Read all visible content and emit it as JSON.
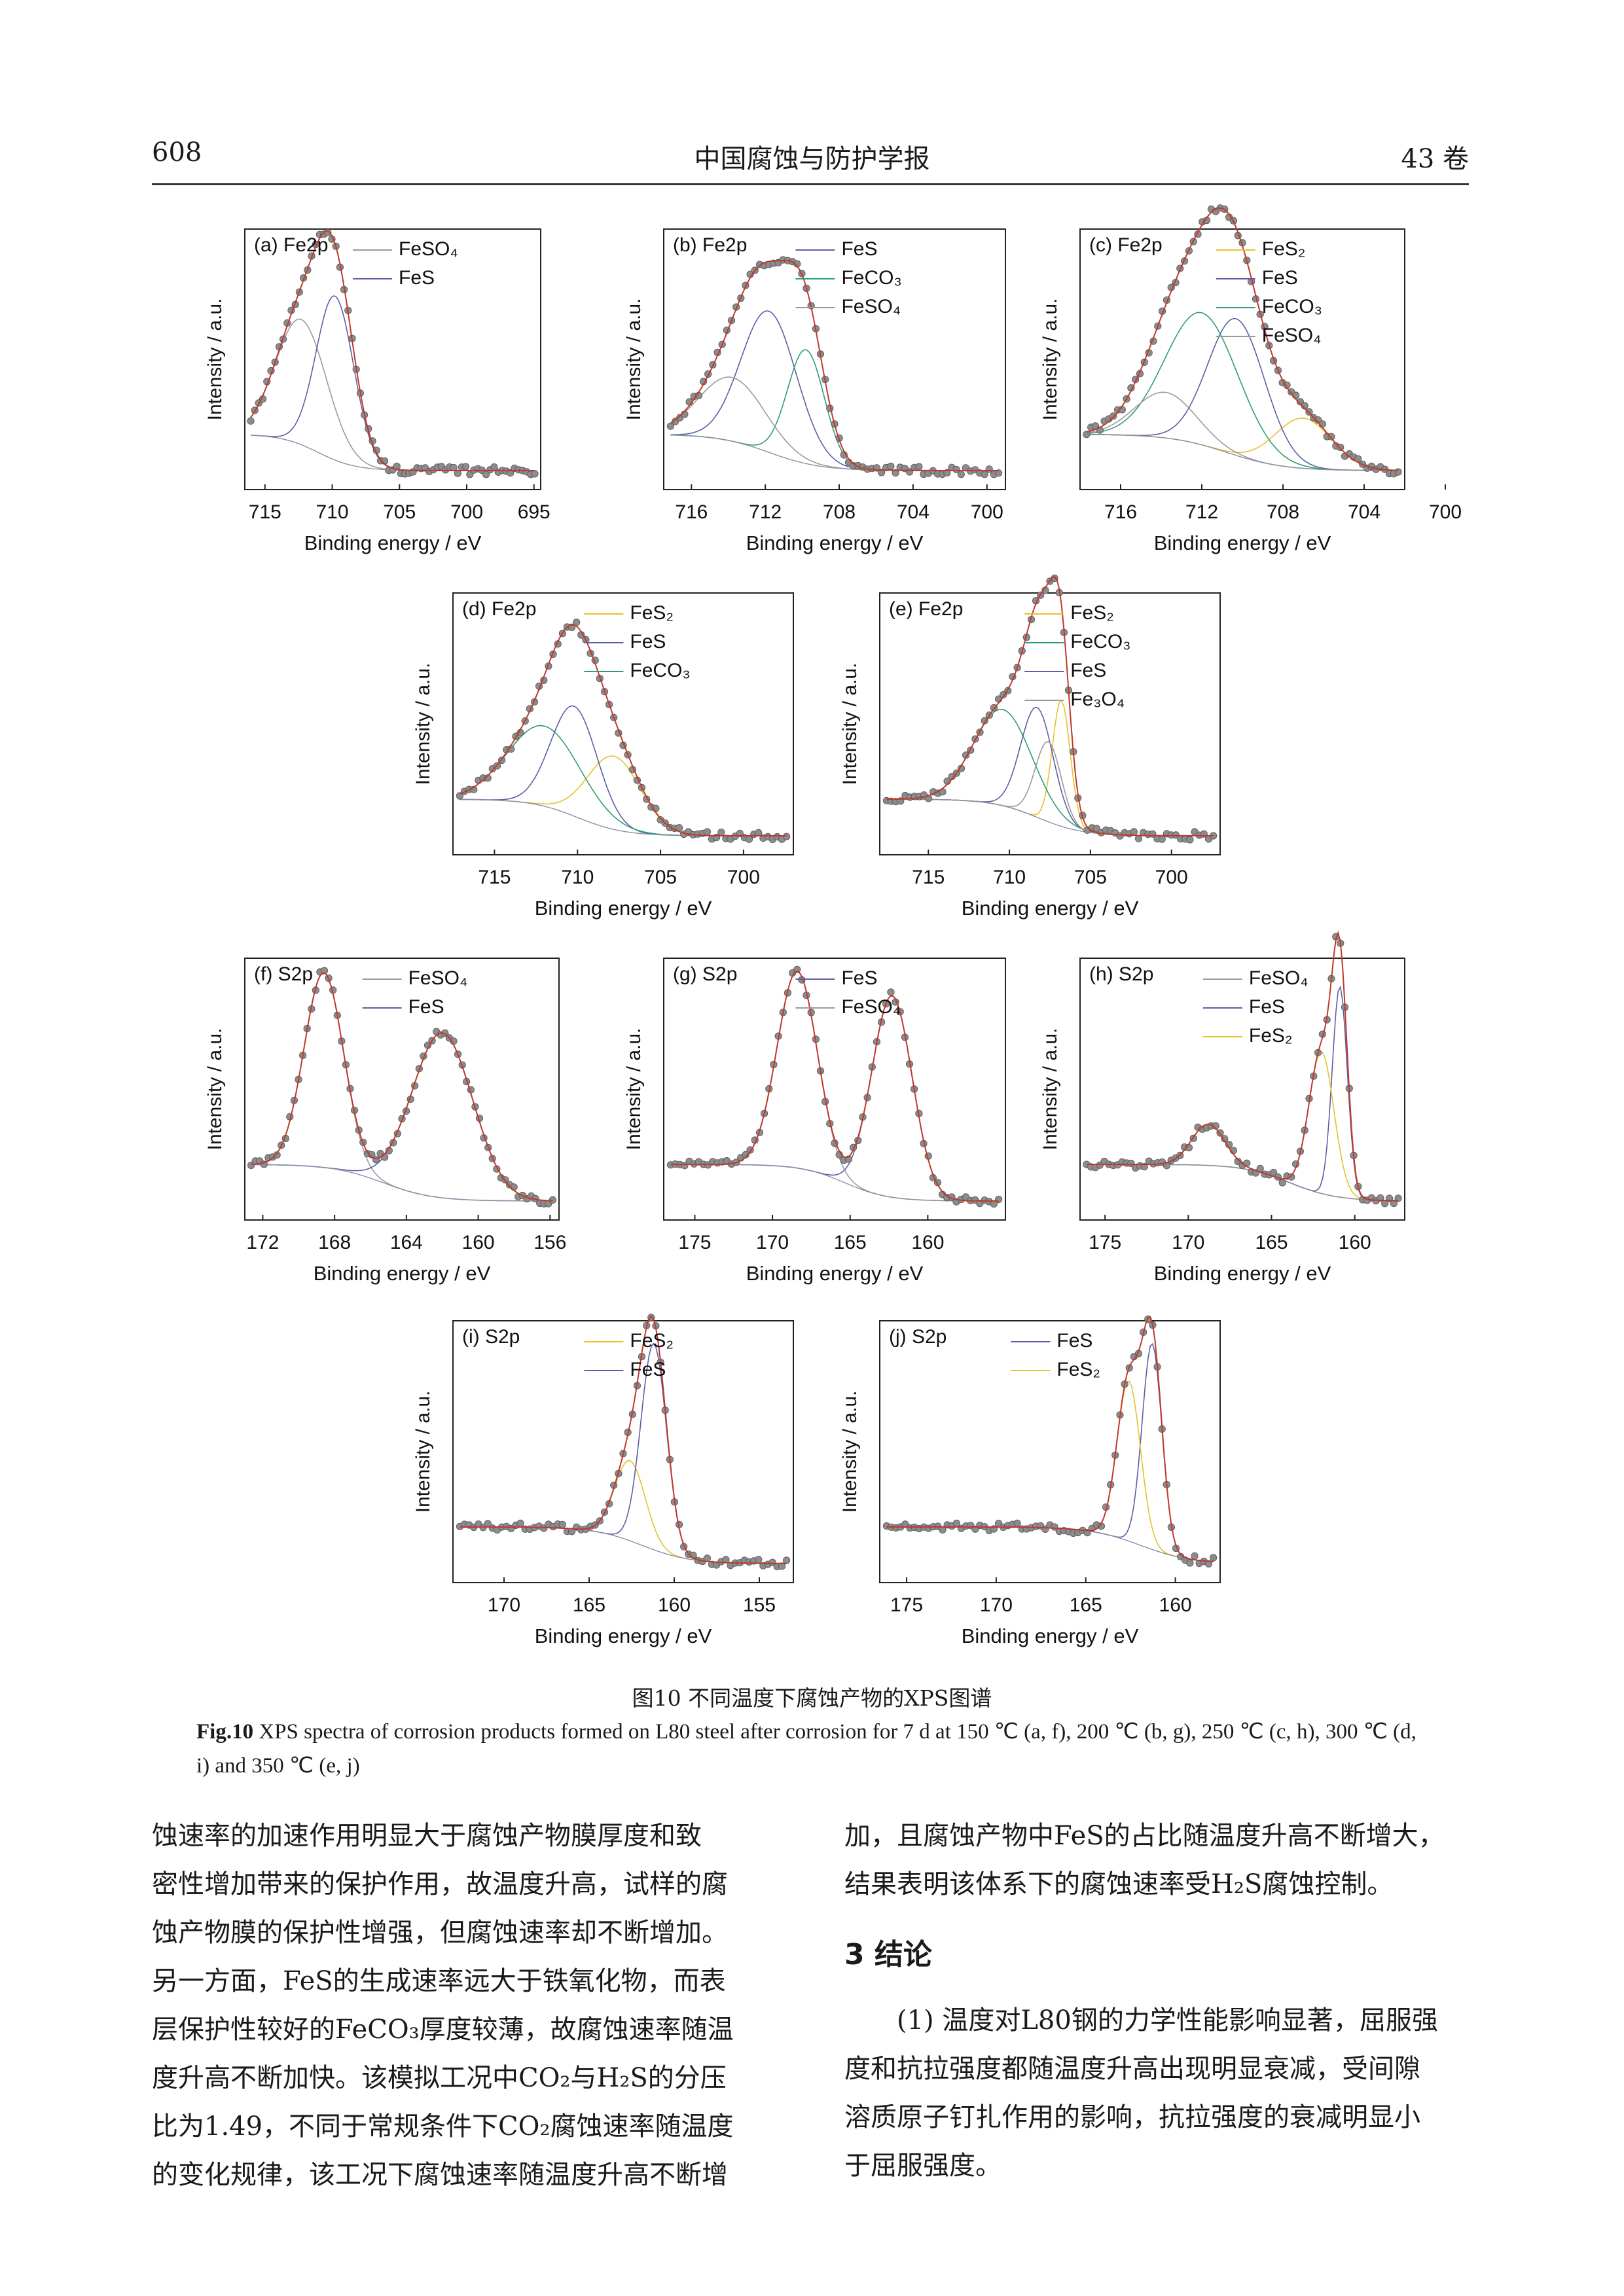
{
  "header": {
    "page_number": "608",
    "journal": "中国腐蚀与防护学报",
    "volume": "43 卷"
  },
  "figure": {
    "caption_cn": "图10 不同温度下腐蚀产物的XPS图谱",
    "caption_en_label": "Fig.10",
    "caption_en_text": " XPS spectra of corrosion products formed on L80 steel after corrosion for 7 d at 150 ℃ (a, f), 200 ℃ (b, g), 250 ℃ (c, h), 300 ℃ (d, i) and 350 ℃ (e, j)",
    "colors": {
      "envelope": "#c0392b",
      "FeS": "#5b5ea6",
      "FeSO4": "#9a9a9a",
      "FeCO3": "#2e9d74",
      "FeS2": "#e6c229",
      "Fe3O4": "#9a9a9a",
      "marker": "#8c8c8c",
      "background": "#8a8fa6"
    }
  },
  "chart_data": [
    {
      "panel": "(a) Fe2p",
      "type": "line",
      "xlabel": "Binding energy / eV",
      "ylabel": "Intensity / a.u.",
      "x_ticks": [
        715,
        710,
        705,
        700,
        695
      ],
      "xlim": [
        716.5,
        694.5
      ],
      "series": [
        {
          "name": "FeSO₄",
          "peak": 712.3,
          "height": 0.55,
          "width": 1.9
        },
        {
          "name": "FeS",
          "peak": 709.8,
          "height": 0.72,
          "width": 1.4
        }
      ],
      "legend": [
        "FeSO₄",
        "FeS"
      ]
    },
    {
      "panel": "(b) Fe2p",
      "type": "line",
      "xlabel": "Binding energy / eV",
      "ylabel": "Intensity / a.u.",
      "x_ticks": [
        716,
        712,
        708,
        704,
        700
      ],
      "xlim": [
        717.5,
        699
      ],
      "series": [
        {
          "name": "FeS",
          "peak": 711.8,
          "height": 0.62,
          "width": 1.5
        },
        {
          "name": "FeCO₃",
          "peak": 709.8,
          "height": 0.5,
          "width": 1.0
        },
        {
          "name": "FeSO₄",
          "peak": 713.8,
          "height": 0.28,
          "width": 1.8
        }
      ],
      "legend": [
        "FeS",
        "FeCO₃",
        "FeSO₄"
      ]
    },
    {
      "panel": "(c) Fe2p",
      "type": "line",
      "xlabel": "Binding energy / eV",
      "ylabel": "Intensity / a.u.",
      "x_ticks": [
        716,
        712,
        708,
        704,
        700
      ],
      "xlim": [
        718,
        702
      ],
      "series": [
        {
          "name": "FeS₂",
          "peak": 707.0,
          "height": 0.22,
          "width": 1.4
        },
        {
          "name": "FeS",
          "peak": 710.3,
          "height": 0.6,
          "width": 1.4
        },
        {
          "name": "FeCO₃",
          "peak": 712.0,
          "height": 0.58,
          "width": 1.8
        },
        {
          "name": "FeSO₄",
          "peak": 713.8,
          "height": 0.2,
          "width": 1.5
        }
      ],
      "legend": [
        "FeS₂",
        "FeS",
        "FeCO₃",
        "FeSO₄"
      ]
    },
    {
      "panel": "(d) Fe2p",
      "type": "line",
      "xlabel": "Binding energy / eV",
      "ylabel": "Intensity / a.u.",
      "x_ticks": [
        715,
        710,
        705,
        700
      ],
      "xlim": [
        717.5,
        697
      ],
      "series": [
        {
          "name": "FeS₂",
          "peak": 707.8,
          "height": 0.32,
          "width": 1.6
        },
        {
          "name": "FeS",
          "peak": 710.2,
          "height": 0.48,
          "width": 1.4
        },
        {
          "name": "FeCO₃",
          "peak": 712.0,
          "height": 0.35,
          "width": 2.2
        }
      ],
      "legend": [
        "FeS₂",
        "FeS",
        "FeCO₃"
      ]
    },
    {
      "panel": "(e) Fe2p",
      "type": "line",
      "xlabel": "Binding energy / eV",
      "ylabel": "Intensity / a.u.",
      "x_ticks": [
        715,
        710,
        705,
        700
      ],
      "xlim": [
        718,
        697
      ],
      "series": [
        {
          "name": "FeS₂",
          "peak": 706.8,
          "height": 0.55,
          "width": 0.55
        },
        {
          "name": "FeCO₃",
          "peak": 710.4,
          "height": 0.42,
          "width": 1.8
        },
        {
          "name": "FeS",
          "peak": 708.3,
          "height": 0.48,
          "width": 1.0
        },
        {
          "name": "Fe₃O₄",
          "peak": 707.6,
          "height": 0.35,
          "width": 0.8
        }
      ],
      "legend": [
        "FeS₂",
        "FeCO₃",
        "FeS",
        "Fe₃O₄"
      ]
    },
    {
      "panel": "(f) S2p",
      "type": "line",
      "xlabel": "Binding energy / eV",
      "ylabel": "Intensity / a.u.",
      "x_ticks": [
        172,
        168,
        164,
        160,
        156
      ],
      "xlim": [
        173,
        155.5
      ],
      "series": [
        {
          "name": "FeSO₄",
          "peak": 168.6,
          "height": 0.85,
          "width": 1.1
        },
        {
          "name": "FeS",
          "peak": 162.0,
          "height": 0.72,
          "width": 1.7
        }
      ],
      "legend": [
        "FeSO₄",
        "FeS"
      ]
    },
    {
      "panel": "(g) S2p",
      "type": "line",
      "xlabel": "Binding energy / eV",
      "ylabel": "Intensity / a.u.",
      "x_ticks": [
        175,
        170,
        165,
        160
      ],
      "xlim": [
        177,
        155
      ],
      "series": [
        {
          "name": "FeS",
          "peak": 162.3,
          "height": 0.88,
          "width": 1.3
        },
        {
          "name": "FeSO₄",
          "peak": 168.4,
          "height": 0.86,
          "width": 1.3
        }
      ],
      "legend": [
        "FeS",
        "FeSO₄"
      ]
    },
    {
      "panel": "(h) S2p",
      "type": "line",
      "xlabel": "Binding energy / eV",
      "ylabel": "Intensity / a.u.",
      "x_ticks": [
        175,
        170,
        165,
        160
      ],
      "xlim": [
        176.5,
        157
      ],
      "series": [
        {
          "name": "FeSO₄",
          "peak": 168.8,
          "height": 0.18,
          "width": 1.0
        },
        {
          "name": "FeS",
          "peak": 160.9,
          "height": 0.92,
          "width": 0.45
        },
        {
          "name": "FeS₂",
          "peak": 162.0,
          "height": 0.62,
          "width": 0.75
        }
      ],
      "legend": [
        "FeSO₄",
        "FeS",
        "FeS₂"
      ]
    },
    {
      "panel": "(i) S2p",
      "type": "line",
      "xlabel": "Binding energy / eV",
      "ylabel": "Intensity / a.u.",
      "x_ticks": [
        170,
        165,
        160,
        155
      ],
      "xlim": [
        173,
        153
      ],
      "series": [
        {
          "name": "FeS₂",
          "peak": 162.6,
          "height": 0.35,
          "width": 0.9
        },
        {
          "name": "FeS",
          "peak": 161.2,
          "height": 0.9,
          "width": 0.75
        }
      ],
      "legend": [
        "FeS₂",
        "FeS"
      ]
    },
    {
      "panel": "(j) S2p",
      "type": "line",
      "xlabel": "Binding energy / eV",
      "ylabel": "Intensity / a.u.",
      "x_ticks": [
        175,
        170,
        165,
        160
      ],
      "xlim": [
        176.5,
        157.5
      ],
      "series": [
        {
          "name": "FeS",
          "peak": 161.3,
          "height": 0.9,
          "width": 0.55
        },
        {
          "name": "FeS₂",
          "peak": 162.6,
          "height": 0.7,
          "width": 0.65
        }
      ],
      "legend": [
        "FeS",
        "FeS₂"
      ]
    }
  ],
  "body": {
    "left_lines": [
      "蚀速率的加速作用明显大于腐蚀产物膜厚度和致",
      "密性增加带来的保护作用，故温度升高，试样的腐",
      "蚀产物膜的保护性增强，但腐蚀速率却不断增加。",
      "另一方面，FeS的生成速率远大于铁氧化物，而表",
      "层保护性较好的FeCO₃厚度较薄，故腐蚀速率随温",
      "度升高不断加快。该模拟工况中CO₂与H₂S的分压",
      "比为1.49，不同于常规条件下CO₂腐蚀速率随温度",
      "的变化规律，该工况下腐蚀速率随温度升高不断增"
    ],
    "right_lines_top": [
      "加，且腐蚀产物中FeS的占比随温度升高不断增大，",
      "结果表明该体系下的腐蚀速率受H₂S腐蚀控制。"
    ],
    "section_title": "3 结论",
    "right_lines_bottom": [
      "(1) 温度对L80钢的力学性能影响显著，屈服强",
      "度和抗拉强度都随温度升高出现明显衰减，受间隙",
      "溶质原子钉扎作用的影响，抗拉强度的衰减明显小",
      "于屈服强度。"
    ]
  }
}
